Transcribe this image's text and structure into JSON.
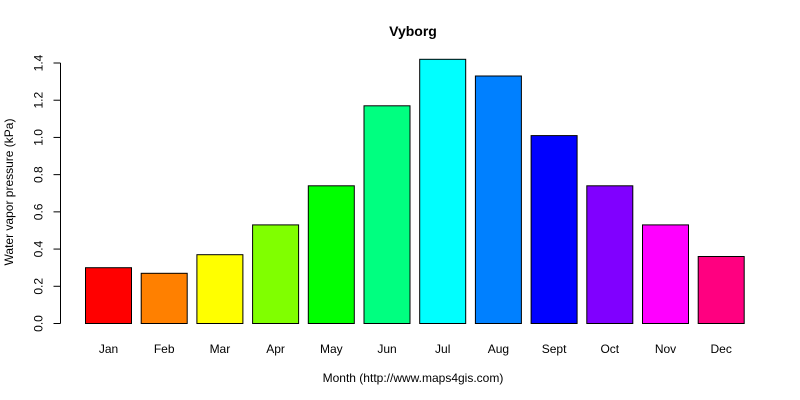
{
  "chart_data": {
    "type": "bar",
    "title": "Vyborg",
    "xlabel": "Month (http://www.maps4gis.com)",
    "ylabel": "Water vapor pressure (kPa)",
    "ylim": [
      0,
      1.4
    ],
    "yticks": [
      "0.0",
      "0.2",
      "0.4",
      "0.6",
      "0.8",
      "1.0",
      "1.2",
      "1.4"
    ],
    "ytick_values": [
      0,
      0.2,
      0.4,
      0.6,
      0.8,
      1.0,
      1.2,
      1.4
    ],
    "categories": [
      "Jan",
      "Feb",
      "Mar",
      "Apr",
      "May",
      "Jun",
      "Jul",
      "Aug",
      "Sept",
      "Oct",
      "Nov",
      "Dec"
    ],
    "values": [
      0.3,
      0.27,
      0.37,
      0.53,
      0.74,
      1.17,
      1.42,
      1.33,
      1.01,
      0.74,
      0.53,
      0.36
    ],
    "colors": [
      "#FF0000",
      "#FF8000",
      "#FFFF00",
      "#80FF00",
      "#00FF00",
      "#00FF80",
      "#00FFFF",
      "#0080FF",
      "#0000FF",
      "#8000FF",
      "#FF00FF",
      "#FF0080"
    ],
    "grid": false,
    "legend": "none"
  }
}
